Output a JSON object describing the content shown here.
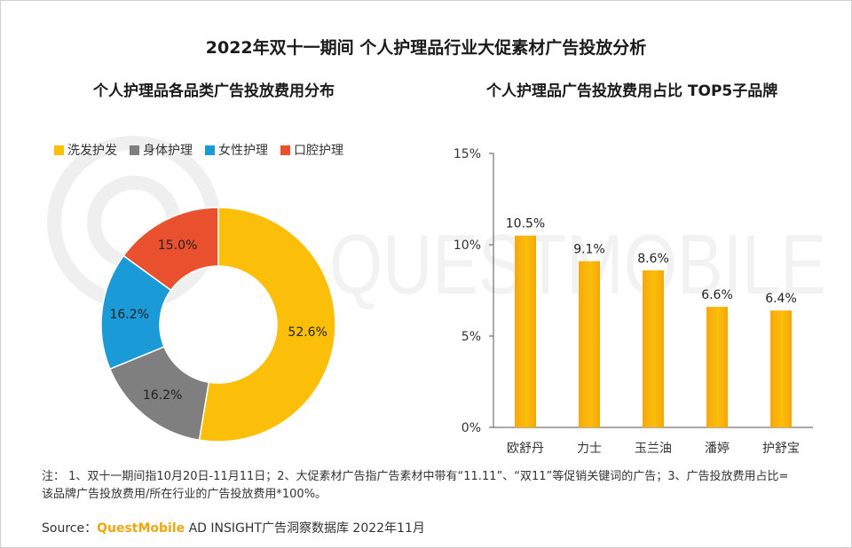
{
  "title": "2022年双十一期间 个人护理品行业大促素材广告投放分析",
  "chart_data": [
    {
      "type": "pie",
      "title": "个人护理品各品类广告投放费用分布",
      "legend_position": "top",
      "categories": [
        "洗发护发",
        "身体护理",
        "女性护理",
        "口腔护理"
      ],
      "values": [
        52.6,
        16.2,
        16.2,
        15.0
      ],
      "labels": [
        "52.6%",
        "16.2%",
        "16.2%",
        "15.0%"
      ],
      "colors": [
        "#fbbf0a",
        "#7f7f7f",
        "#1a9ad6",
        "#e8502e"
      ]
    },
    {
      "type": "bar",
      "title": "个人护理品广告投放费用占比 TOP5子品牌",
      "categories": [
        "欧舒丹",
        "力士",
        "玉兰油",
        "潘婷",
        "护舒宝"
      ],
      "values": [
        10.5,
        9.1,
        8.6,
        6.6,
        6.4
      ],
      "labels": [
        "10.5%",
        "9.1%",
        "8.6%",
        "6.6%",
        "6.4%"
      ],
      "ylim": [
        0,
        15
      ],
      "yticks": [
        "0%",
        "5%",
        "10%",
        "15%"
      ],
      "grid": false,
      "color": "#fbbf0a"
    }
  ],
  "watermark": "QUESTMOBILE",
  "note": "注： 1、双十一期间指10月20日-11月11日；2、大促素材广告指广告素材中带有“11.11”、“双11”等促销关键词的广告；3、广告投放费用占比=该品牌广告投放费用/所在行业的广告投放费用*100%。",
  "source": {
    "prefix": "Source：",
    "brand": "QuestMobile",
    "rest": " AD INSIGHT广告洞察数据库 2022年11月"
  }
}
